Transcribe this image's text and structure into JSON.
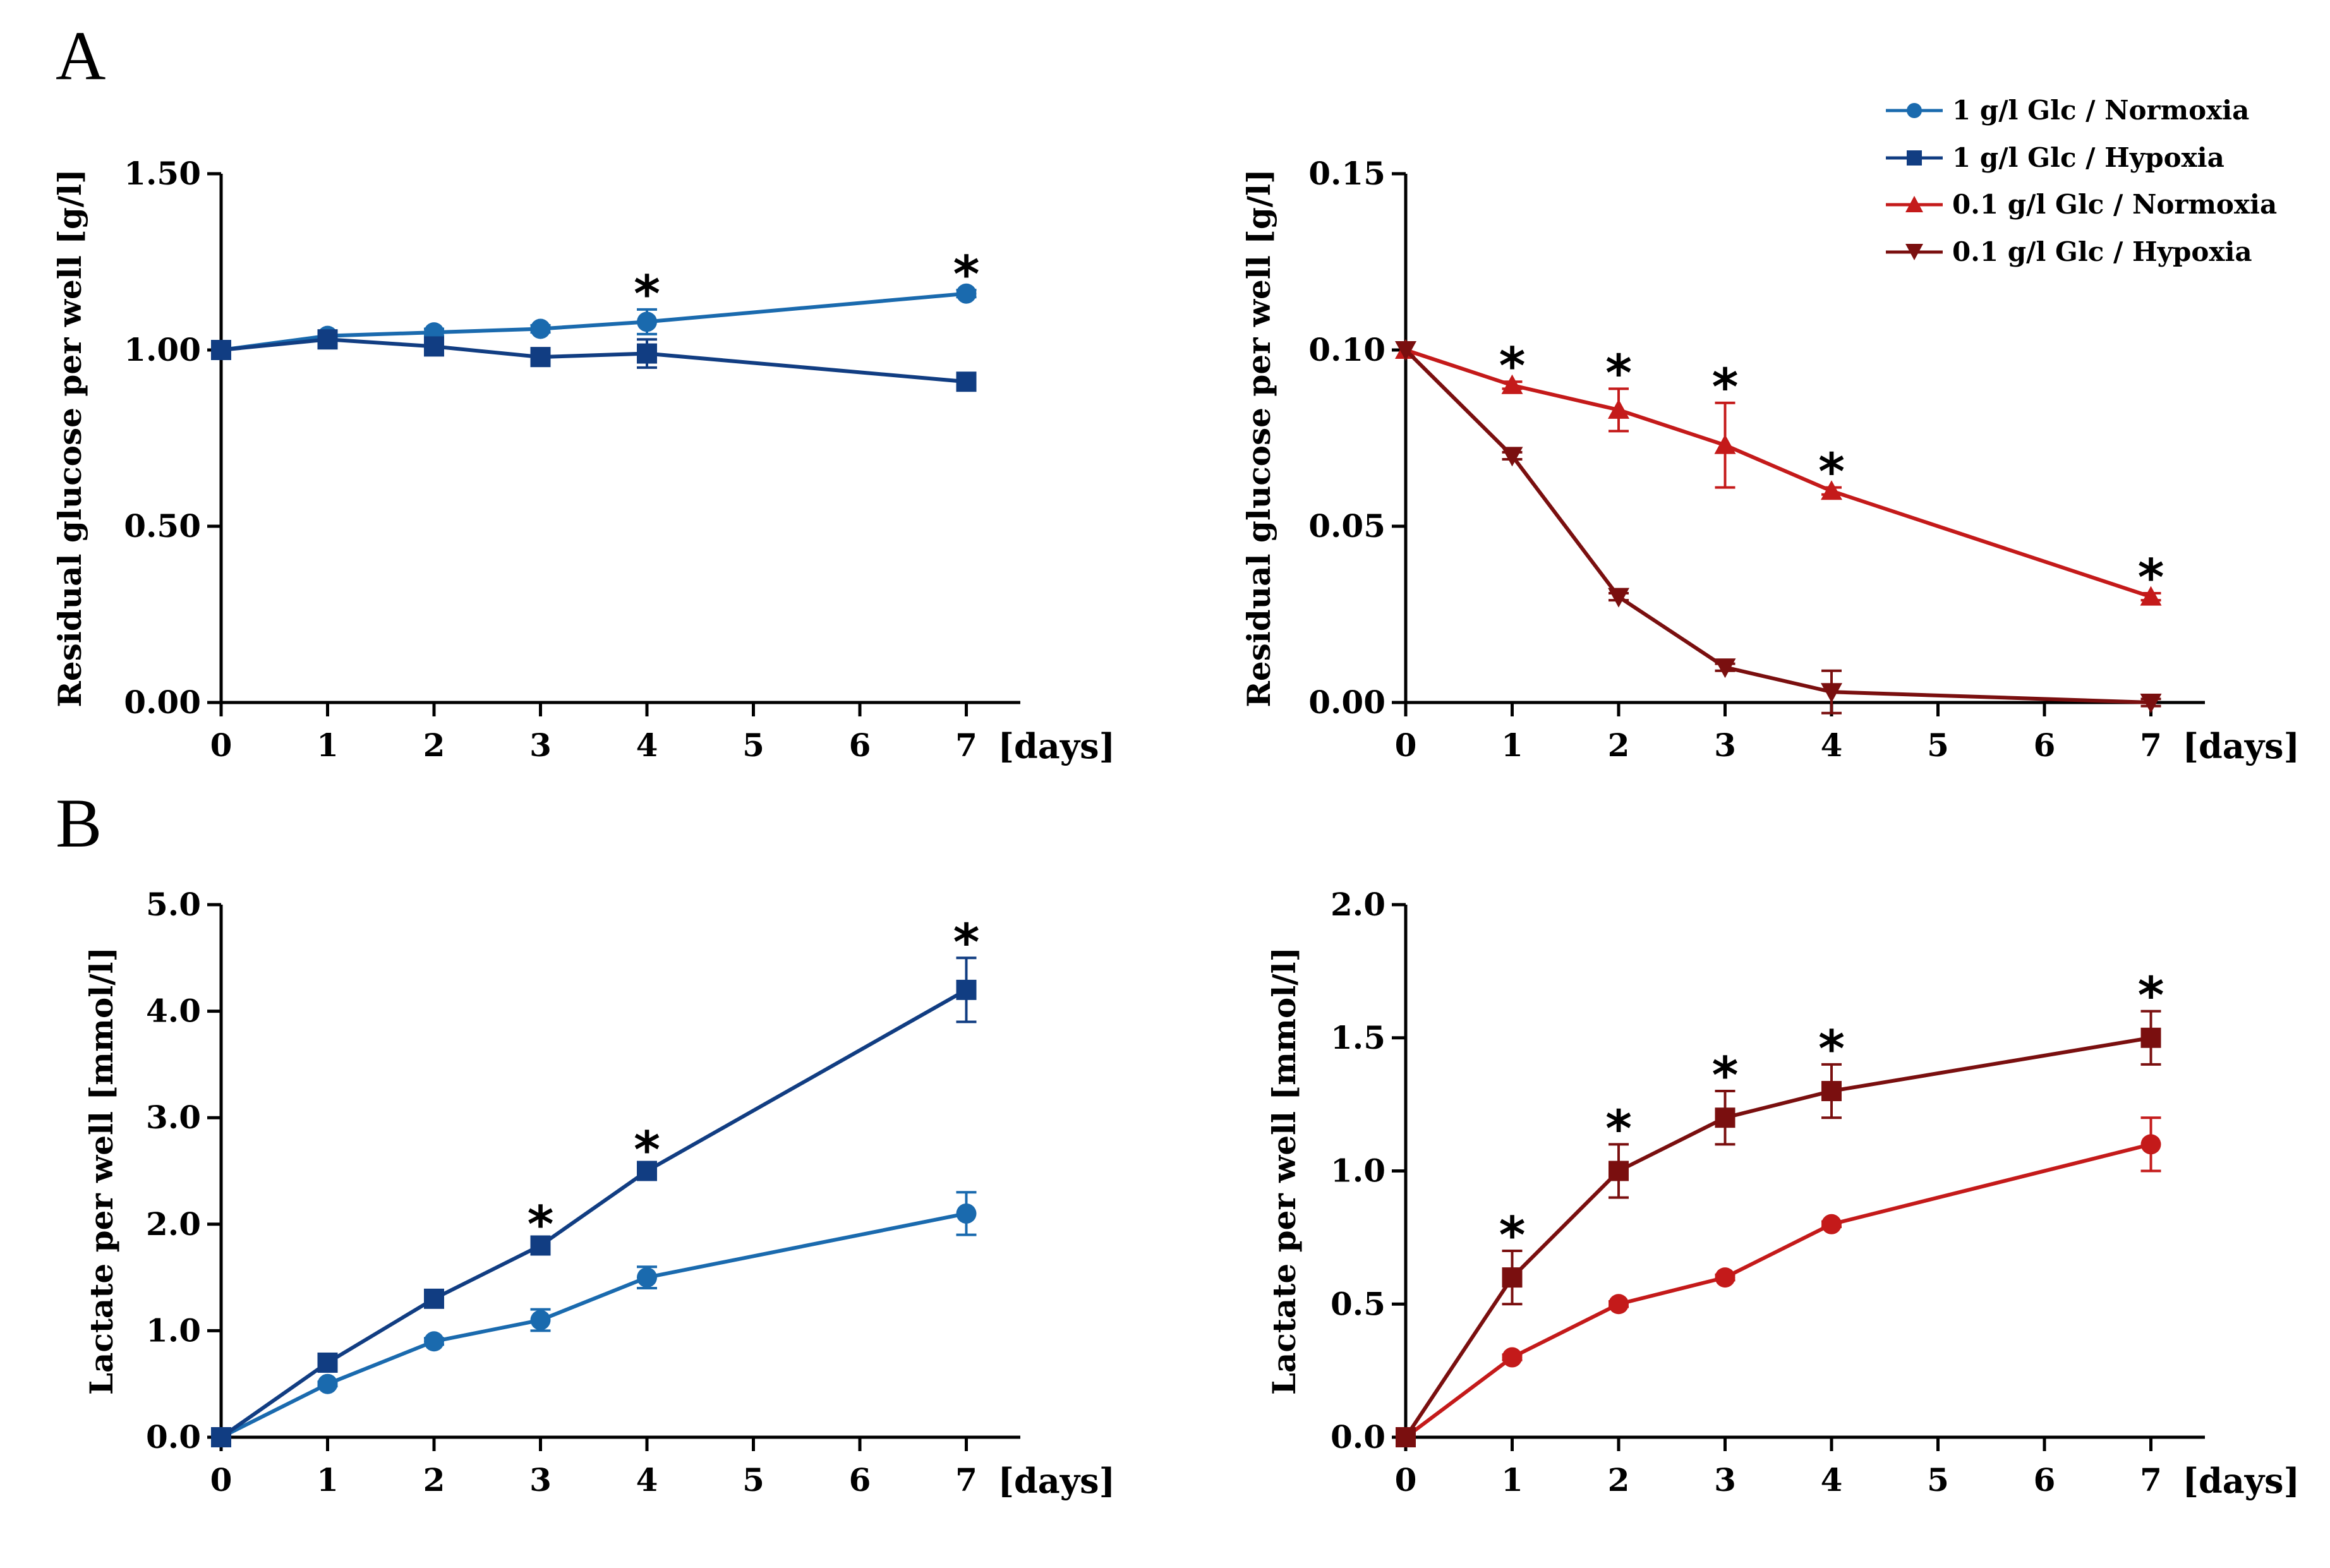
{
  "figure": {
    "panel_labels": [
      "A",
      "B"
    ],
    "legend": [
      {
        "label": "1 g/l Glc / Normoxia",
        "color": "#1a6aae",
        "marker": "circle"
      },
      {
        "label": "1 g/l Glc / Hypoxia",
        "color": "#113d82",
        "marker": "square"
      },
      {
        "label": "0.1 g/l Glc / Normoxia",
        "color": "#c41a1a",
        "marker": "triangle-up"
      },
      {
        "label": "0.1 g/l Glc / Hypoxia",
        "color": "#7a0f0f",
        "marker": "triangle-down"
      }
    ]
  },
  "chart_data": [
    {
      "id": "A-left",
      "type": "line",
      "title": "",
      "xlabel": "[days]",
      "ylabel": "Residual glucose per well [g/l]",
      "xlim": [
        0,
        7.5
      ],
      "ylim": [
        0,
        1.5
      ],
      "xticks": [
        "0",
        "1",
        "2",
        "3",
        "4",
        "5",
        "6",
        "7"
      ],
      "yticks": [
        "0.00",
        "0.50",
        "1.00",
        "1.50"
      ],
      "series": [
        {
          "name": "1 g/l Glc / Normoxia",
          "color": "#1a6aae",
          "marker": "circle",
          "x": [
            0,
            1,
            2,
            3,
            4,
            7
          ],
          "values": [
            1.0,
            1.04,
            1.05,
            1.06,
            1.08,
            1.16
          ],
          "err": [
            0,
            0.015,
            0.01,
            0.01,
            0.035,
            0.01
          ]
        },
        {
          "name": "1 g/l Glc / Hypoxia",
          "color": "#113d82",
          "marker": "square",
          "x": [
            0,
            1,
            2,
            3,
            4,
            7
          ],
          "values": [
            1.0,
            1.03,
            1.01,
            0.98,
            0.99,
            0.91
          ],
          "err": [
            0,
            0.01,
            0.01,
            0.01,
            0.04,
            0.01
          ]
        }
      ],
      "significance": [
        {
          "x": 4,
          "label": "*"
        },
        {
          "x": 7,
          "label": "*"
        }
      ]
    },
    {
      "id": "A-right",
      "type": "line",
      "title": "",
      "xlabel": "[days]",
      "ylabel": "Residual glucose per well [g/l]",
      "xlim": [
        0,
        7.5
      ],
      "ylim": [
        0,
        0.15
      ],
      "xticks": [
        "0",
        "1",
        "2",
        "3",
        "4",
        "5",
        "6",
        "7"
      ],
      "yticks": [
        "0.00",
        "0.05",
        "0.10",
        "0.15"
      ],
      "series": [
        {
          "name": "0.1 g/l Glc / Normoxia",
          "color": "#c41a1a",
          "marker": "triangle-up",
          "x": [
            0,
            1,
            2,
            3,
            4,
            7
          ],
          "values": [
            0.1,
            0.09,
            0.083,
            0.073,
            0.06,
            0.03
          ],
          "err": [
            0,
            0.001,
            0.006,
            0.012,
            0.001,
            0.001
          ]
        },
        {
          "name": "0.1 g/l Glc / Hypoxia",
          "color": "#7a0f0f",
          "marker": "triangle-down",
          "x": [
            0,
            1,
            2,
            3,
            4,
            7
          ],
          "values": [
            0.1,
            0.07,
            0.03,
            0.01,
            0.003,
            0.0
          ],
          "err": [
            0,
            0.001,
            0.001,
            0.001,
            0.006,
            0.001
          ]
        }
      ],
      "significance": [
        {
          "x": 1,
          "label": "*"
        },
        {
          "x": 2,
          "label": "*"
        },
        {
          "x": 3,
          "label": "*"
        },
        {
          "x": 4,
          "label": "*"
        },
        {
          "x": 7,
          "label": "*"
        }
      ]
    },
    {
      "id": "B-left",
      "type": "line",
      "title": "",
      "xlabel": "[days]",
      "ylabel": "Lactate per well [mmol/l]",
      "xlim": [
        0,
        7.5
      ],
      "ylim": [
        0,
        5.0
      ],
      "xticks": [
        "0",
        "1",
        "2",
        "3",
        "4",
        "5",
        "6",
        "7"
      ],
      "yticks": [
        "0.0",
        "1.0",
        "2.0",
        "3.0",
        "4.0",
        "5.0"
      ],
      "series": [
        {
          "name": "1 g/l Glc / Normoxia",
          "color": "#1a6aae",
          "marker": "circle",
          "x": [
            0,
            1,
            2,
            3,
            4,
            7
          ],
          "values": [
            0,
            0.5,
            0.9,
            1.1,
            1.5,
            2.1
          ],
          "err": [
            0,
            0.02,
            0.03,
            0.1,
            0.1,
            0.2
          ]
        },
        {
          "name": "1 g/l Glc / Hypoxia",
          "color": "#113d82",
          "marker": "square",
          "x": [
            0,
            1,
            2,
            3,
            4,
            7
          ],
          "values": [
            0,
            0.7,
            1.3,
            1.8,
            2.5,
            4.2
          ],
          "err": [
            0,
            0.02,
            0.03,
            0.05,
            0.05,
            0.3
          ]
        }
      ],
      "significance": [
        {
          "x": 3,
          "label": "*"
        },
        {
          "x": 4,
          "label": "*"
        },
        {
          "x": 7,
          "label": "*"
        }
      ]
    },
    {
      "id": "B-right",
      "type": "line",
      "title": "",
      "xlabel": "[days]",
      "ylabel": "Lactate per well [mmol/l]",
      "xlim": [
        0,
        7.5
      ],
      "ylim": [
        0,
        2.0
      ],
      "xticks": [
        "0",
        "1",
        "2",
        "3",
        "4",
        "5",
        "6",
        "7"
      ],
      "yticks": [
        "0.0",
        "0.5",
        "1.0",
        "1.5",
        "2.0"
      ],
      "series": [
        {
          "name": "0.1 g/l Glc / Normoxia",
          "color": "#c41a1a",
          "marker": "circle",
          "x": [
            0,
            1,
            2,
            3,
            4,
            7
          ],
          "values": [
            0,
            0.3,
            0.5,
            0.6,
            0.8,
            1.1
          ],
          "err": [
            0,
            0.01,
            0.01,
            0.01,
            0.01,
            0.1
          ]
        },
        {
          "name": "0.1 g/l Glc / Hypoxia",
          "color": "#7a0f0f",
          "marker": "square",
          "x": [
            0,
            1,
            2,
            3,
            4,
            7
          ],
          "values": [
            0,
            0.6,
            1.0,
            1.2,
            1.3,
            1.5
          ],
          "err": [
            0,
            0.1,
            0.1,
            0.1,
            0.1,
            0.1
          ]
        }
      ],
      "significance": [
        {
          "x": 1,
          "label": "*"
        },
        {
          "x": 2,
          "label": "*"
        },
        {
          "x": 3,
          "label": "*"
        },
        {
          "x": 4,
          "label": "*"
        },
        {
          "x": 7,
          "label": "*"
        }
      ]
    }
  ]
}
